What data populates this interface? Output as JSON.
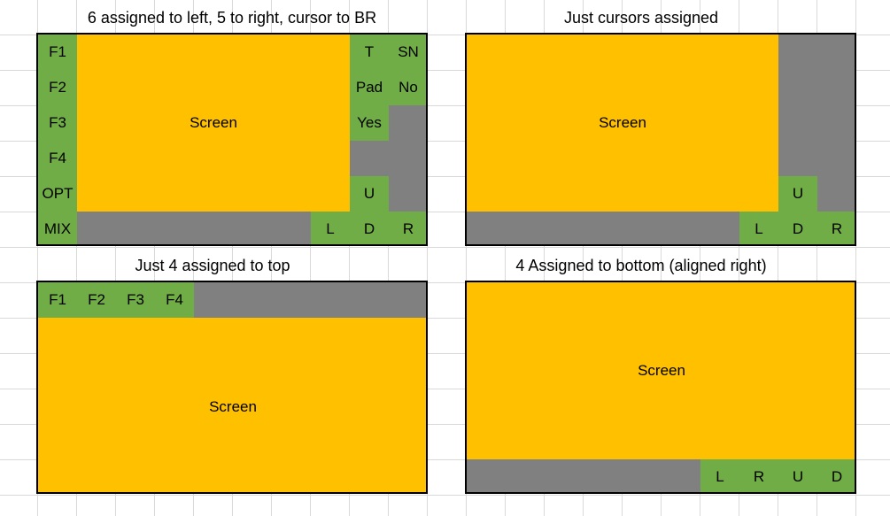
{
  "panels": [
    {
      "title": "6 assigned to left, 5 to right, cursor to BR",
      "screen_label": "Screen",
      "left_keys": [
        "F1",
        "F2",
        "F3",
        "F4",
        "OPT",
        "MIX"
      ],
      "right_keys": [
        "T",
        "SN",
        "Pad",
        "No",
        "Yes",
        "U",
        "L",
        "D",
        "R"
      ]
    },
    {
      "title": "Just cursors assigned",
      "screen_label": "Screen",
      "cursor_keys": [
        "U",
        "L",
        "D",
        "R"
      ]
    },
    {
      "title": "Just 4 assigned to top",
      "screen_label": "Screen",
      "top_keys": [
        "F1",
        "F2",
        "F3",
        "F4"
      ]
    },
    {
      "title": "4 Assigned to bottom (aligned right)",
      "screen_label": "Screen",
      "bottom_keys": [
        "L",
        "R",
        "U",
        "D"
      ]
    }
  ],
  "colors": {
    "screen": "#ffc000",
    "button": "#70ad47",
    "unassigned": "#808080",
    "gridline": "#d9d9d9"
  }
}
